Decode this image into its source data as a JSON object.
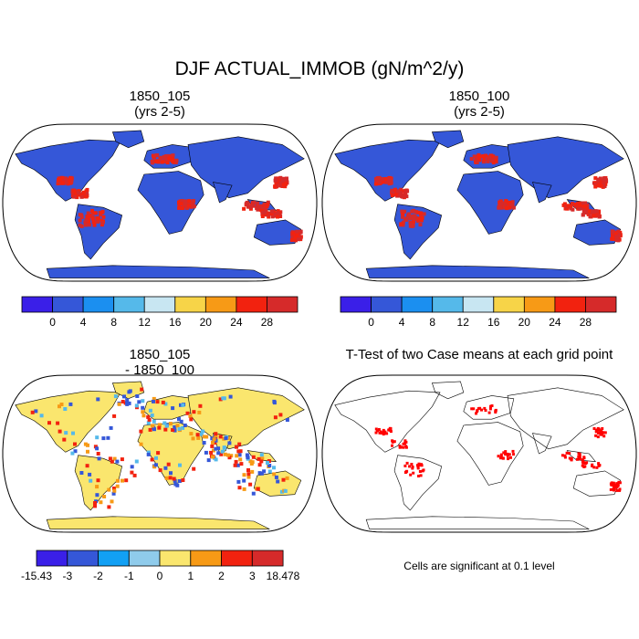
{
  "figure": {
    "title": "DJF ACTUAL_IMMOB (gN/m^2/y)"
  },
  "panels": {
    "top_left": {
      "title": "1850_105\n(yrs 2-5)"
    },
    "top_right": {
      "title": "1850_100\n(yrs 2-5)"
    },
    "bottom_left": {
      "title": "1850_105\n- 1850_100"
    },
    "bottom_right": {
      "title": "T-Test of two Case means at each grid point",
      "note": "Cells are significant at 0.1 level"
    }
  },
  "colorbars": {
    "absolute": {
      "colors": [
        "#3a1fe8",
        "#3557d8",
        "#1b8ff0",
        "#55b9ea",
        "#c8e6f2",
        "#f7d448",
        "#f79a16",
        "#f2220f",
        "#d62a2a"
      ],
      "labels": [
        "0",
        "4",
        "8",
        "12",
        "16",
        "20",
        "24",
        "28"
      ]
    },
    "difference": {
      "colors": [
        "#3a1fe8",
        "#3557d8",
        "#12a0f4",
        "#8fcbeb",
        "#fae66e",
        "#f79a16",
        "#f2220f",
        "#d62a2a"
      ],
      "labels": [
        "-15.43",
        "-3",
        "-2",
        "-1",
        "0",
        "1",
        "2",
        "3",
        "18.478"
      ]
    }
  },
  "map_colors": {
    "ocean": "#ffffff",
    "abs_land": "#3557d8",
    "abs_hot": "#d62a2a",
    "abs_warm": "#f2220f",
    "diff_land": "#fae66e",
    "diff_pos": "#f2220f",
    "diff_neg": "#3557d8",
    "sig": "#ff0000",
    "outline": "#000000"
  }
}
